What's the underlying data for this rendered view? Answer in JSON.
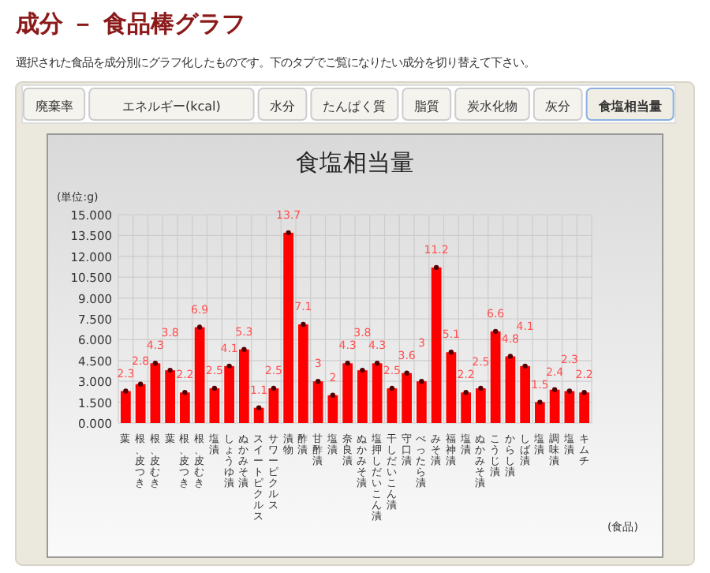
{
  "chart_data": {
    "type": "bar",
    "title": "食塩相当量",
    "ylabel": "(単位:g)",
    "xlabel": "(食品)",
    "annotations": [
      "成分 － 食品棒グラフ",
      "選択された食品を成分別にグラフ化したものです。下のタブでご覧になりたい成分を切り替えて下さい。",
      "廃棄率",
      "エネルギー(kcal)",
      "水分",
      "たんぱく質",
      "脂質",
      "炭水化物",
      "灰分",
      "食塩相当量"
    ],
    "categories": [
      "葉",
      "根、皮つき",
      "根、皮むき",
      "葉",
      "根、皮つき",
      "根、皮むき",
      "塩漬",
      "しょうゆ漬",
      "ぬかみそ漬",
      "スイートピクルス",
      "サワーピクルス",
      "漬物",
      "酢漬",
      "甘酢漬",
      "塩漬",
      "奈良漬",
      "ぬかみそ漬",
      "塩押しだいこん漬",
      "干しだいこん漬",
      "守口漬",
      "べったら漬",
      "みそ漬",
      "福神漬",
      "塩漬",
      "ぬかみそ漬",
      "こうじ漬",
      "からし漬",
      "しば漬",
      "塩漬",
      "調味漬",
      "塩漬",
      "キムチ"
    ],
    "values": [
      2.3,
      2.8,
      4.3,
      3.8,
      2.2,
      6.9,
      2.5,
      4.1,
      5.3,
      1.1,
      2.5,
      13.7,
      7.1,
      3,
      2,
      4.3,
      3.8,
      4.3,
      2.5,
      3.6,
      3,
      11.2,
      5.1,
      2.2,
      2.5,
      6.6,
      4.8,
      4.1,
      1.5,
      2.4,
      2.3,
      2.2
    ],
    "color": "#ff0000",
    "marker": "circle",
    "data_labels": true,
    "grid": true,
    "ylim": [
      0,
      15
    ],
    "yticks": [
      {
        "value": 0,
        "label": "0.000"
      },
      {
        "value": 1.5,
        "label": "1.500"
      },
      {
        "value": 3,
        "label": "3.000"
      },
      {
        "value": 4.5,
        "label": "4.500"
      },
      {
        "value": 6,
        "label": "6.000"
      },
      {
        "value": 7.5,
        "label": "7.500"
      },
      {
        "value": 9,
        "label": "9.000"
      },
      {
        "value": 10.5,
        "label": "10.500"
      },
      {
        "value": 12,
        "label": "12.000"
      },
      {
        "value": 13.5,
        "label": "13.500"
      },
      {
        "value": 15,
        "label": "15.000"
      }
    ]
  }
}
